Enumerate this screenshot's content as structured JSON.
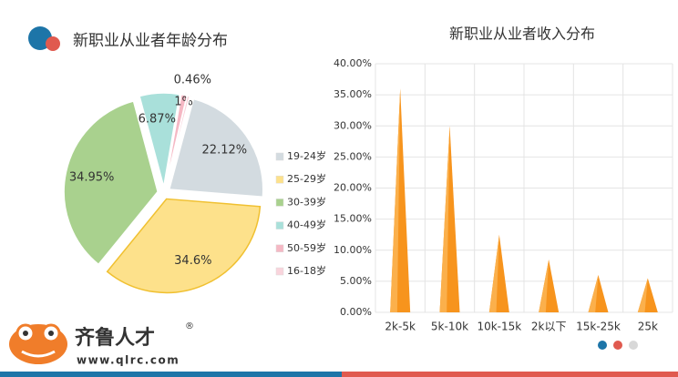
{
  "chart_data": [
    {
      "type": "pie",
      "title": "新职业从业者年龄分布",
      "categories": [
        "19-24岁",
        "25-29岁",
        "30-39岁",
        "40-49岁",
        "50-59岁",
        "16-18岁"
      ],
      "values": [
        22.12,
        34.6,
        34.95,
        6.87,
        1,
        0.46
      ],
      "value_labels": [
        "22.12%",
        "34.6%",
        "34.95%",
        "6.87%",
        "1%",
        "0.46%"
      ],
      "colors": [
        "#d3dbe0",
        "#fde18b",
        "#a9d18e",
        "#a9e0da",
        "#f5b8c4",
        "#f9d4dc"
      ],
      "legend": "right"
    },
    {
      "type": "cone",
      "title": "新职业从业者收入分布",
      "categories": [
        "2k-5k",
        "5k-10k",
        "10k-15k",
        "2k以下",
        "15k-25k",
        "25k"
      ],
      "values": [
        36,
        30,
        12.5,
        8.5,
        6,
        5.5
      ],
      "color": "#f7941d",
      "ylim": [
        0,
        40
      ],
      "yticks": [
        {
          "value": 0,
          "label": "0.00%"
        },
        {
          "value": 5,
          "label": "5.00%"
        },
        {
          "value": 10,
          "label": "10.00%"
        },
        {
          "value": 15,
          "label": "15.00%"
        },
        {
          "value": 20,
          "label": "20.00%"
        },
        {
          "value": 25,
          "label": "25.00%"
        },
        {
          "value": 30,
          "label": "30.00%"
        },
        {
          "value": 35,
          "label": "35.00%"
        },
        {
          "value": 40,
          "label": "40.00%"
        }
      ],
      "grid": true
    }
  ],
  "branding": {
    "name": "齐鲁人才",
    "mark": "®",
    "url": "www.qlrc.com"
  }
}
